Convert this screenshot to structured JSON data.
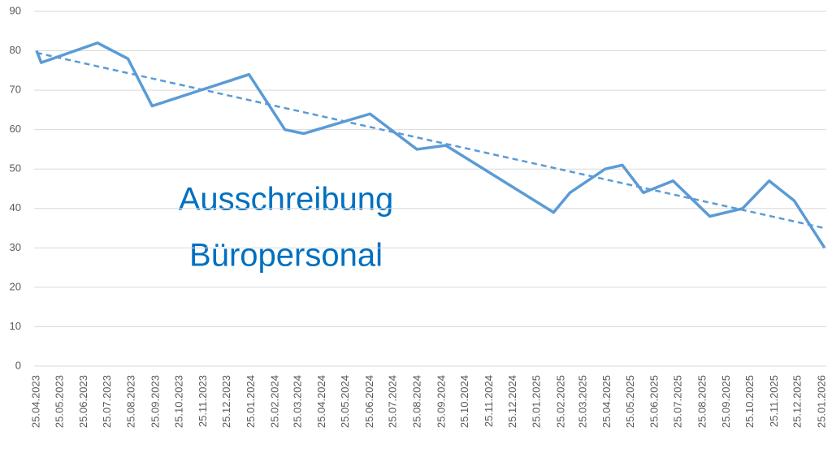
{
  "chart_data": {
    "type": "line",
    "annotation": [
      "Ausschreibung",
      "Büropersonal"
    ],
    "series": [
      {
        "color": "#5b9bd5",
        "x": [
          "25.04.2023",
          "01.05.2023",
          "12.07.2023",
          "20.08.2023",
          "20.09.2023",
          "22.01.2024",
          "08.03.2024",
          "01.04.2024",
          "25.06.2024",
          "24.08.2024",
          "30.09.2024",
          "15.02.2025",
          "08.03.2025",
          "22.04.2025",
          "14.05.2025",
          "10.06.2025",
          "18.07.2025",
          "03.09.2025",
          "15.10.2025",
          "18.11.2025",
          "20.12.2025",
          "28.01.2026"
        ],
        "values": [
          80,
          77,
          82,
          78,
          66,
          74,
          60,
          59,
          64,
          55,
          56,
          39,
          44,
          50,
          51,
          44,
          47,
          38,
          40,
          47,
          42,
          30
        ]
      },
      {
        "color": "#5b9bd5",
        "dashed": true,
        "x": [
          "25.04.2023",
          "28.01.2026"
        ],
        "values": [
          79.5,
          35
        ]
      }
    ],
    "xlim": [
      "25.04.2023",
      "25.01.2026"
    ],
    "xticks": [
      "25.04.2023",
      "25.05.2023",
      "25.06.2023",
      "25.07.2023",
      "25.08.2023",
      "25.09.2023",
      "25.10.2023",
      "25.11.2023",
      "25.12.2023",
      "25.01.2024",
      "25.02.2024",
      "25.03.2024",
      "25.04.2024",
      "25.05.2024",
      "25.06.2024",
      "25.07.2024",
      "25.08.2024",
      "25.09.2024",
      "25.10.2024",
      "25.11.2024",
      "25.12.2024",
      "25.01.2025",
      "25.02.2025",
      "25.03.2025",
      "25.04.2025",
      "25.05.2025",
      "25.06.2025",
      "25.07.2025",
      "25.08.2025",
      "25.09.2025",
      "25.10.2025",
      "25.11.2025",
      "25.12.2025",
      "25.01.2026"
    ],
    "ylim": [
      0,
      90
    ],
    "yticks": [
      0,
      10,
      20,
      30,
      40,
      50,
      60,
      70,
      80,
      90
    ],
    "grid": true
  }
}
